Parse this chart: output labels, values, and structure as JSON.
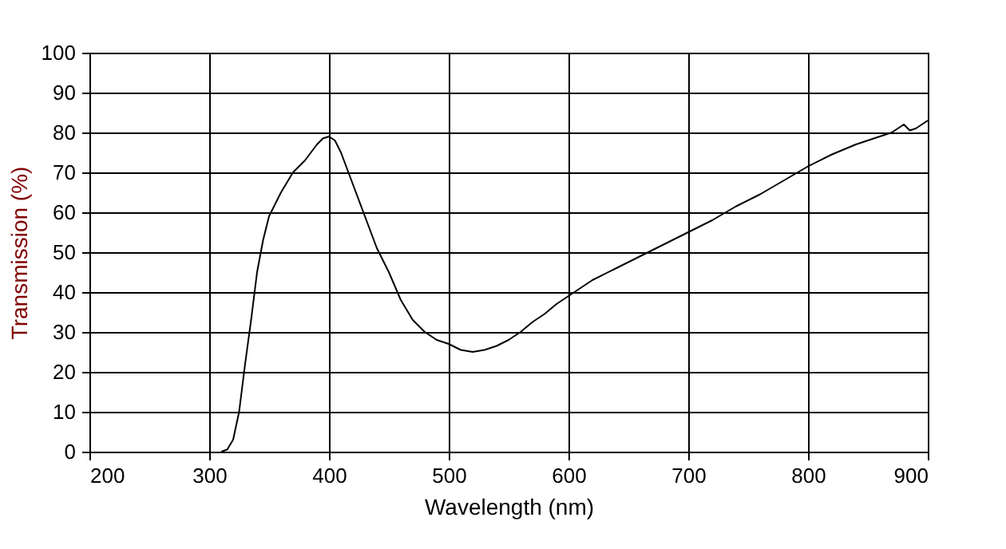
{
  "chart_data": {
    "type": "line",
    "xlabel": "Wavelength (nm)",
    "ylabel": "Transmission (%)",
    "x": [
      310,
      315,
      320,
      325,
      330,
      335,
      340,
      345,
      350,
      360,
      370,
      380,
      390,
      395,
      400,
      405,
      410,
      420,
      430,
      440,
      450,
      460,
      470,
      480,
      490,
      500,
      510,
      520,
      530,
      540,
      550,
      560,
      570,
      580,
      590,
      600,
      620,
      640,
      660,
      680,
      700,
      720,
      740,
      760,
      780,
      800,
      820,
      840,
      860,
      870,
      880,
      885,
      890,
      900
    ],
    "series": [
      {
        "color": "#000000",
        "values": [
          0,
          0.5,
          3,
          10,
          22,
          33,
          45,
          53,
          59,
          65,
          70,
          73,
          77,
          78.5,
          79,
          78,
          75,
          67,
          59,
          51,
          45,
          38,
          33,
          30,
          28,
          27,
          25.5,
          25,
          25.5,
          26.5,
          28,
          30,
          32.5,
          34.5,
          37,
          39,
          43,
          46,
          49,
          52,
          55,
          58,
          61.5,
          64.5,
          68,
          71.5,
          74.5,
          77,
          79,
          80,
          82,
          80.5,
          81,
          83
        ]
      }
    ],
    "xlim": [
      200,
      900
    ],
    "xticks": [
      200,
      300,
      400,
      500,
      600,
      700,
      800,
      900
    ],
    "ylim": [
      0,
      100
    ],
    "yticks": [
      0,
      10,
      20,
      30,
      40,
      50,
      60,
      70,
      80,
      90,
      100
    ],
    "grid": true,
    "marker": "none",
    "line_style": "solid"
  }
}
